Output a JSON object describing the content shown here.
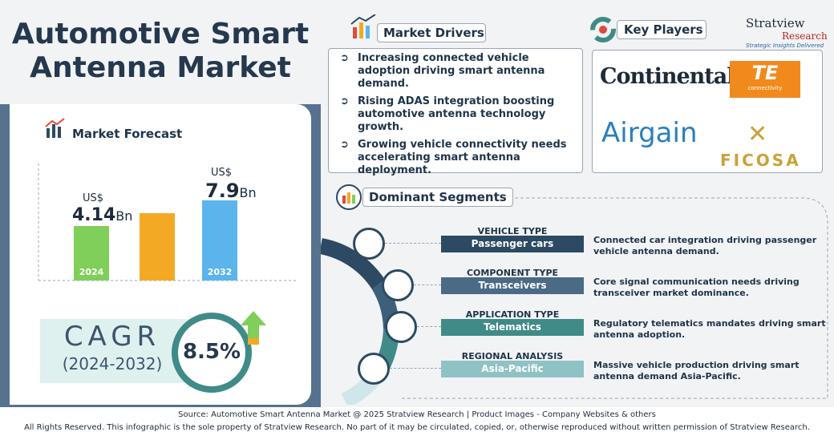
{
  "title": "Automotive Smart Antenna Market",
  "forecast": {
    "heading": "Market Forecast",
    "bars": [
      {
        "currency": "US$",
        "value": "4.14",
        "unit": "Bn",
        "year": "2024"
      },
      {
        "currency": "US$",
        "value": "7.9",
        "unit": "Bn",
        "year": "2032"
      }
    ]
  },
  "cagr": {
    "label": "CAGR",
    "period": "(2024-2032)",
    "value": "8.5%"
  },
  "drivers": {
    "heading": "Market Drivers",
    "items": [
      "Increasing connected vehicle adoption driving smart antenna demand.",
      "Rising ADAS integration boosting automotive antenna technology growth.",
      "Growing vehicle connectivity needs accelerating smart antenna deployment."
    ]
  },
  "key_players": {
    "heading": "Key Players",
    "logos": [
      "Continental",
      "TE",
      "connectivity",
      "Airgain",
      "FICOSA"
    ]
  },
  "brand": {
    "name": "Stratview",
    "sub": "Research",
    "tagline": "Strategic Insights Delivered"
  },
  "segments": {
    "heading": "Dominant Segments",
    "items": [
      {
        "type": "VEHICLE TYPE",
        "name": "Passenger cars",
        "desc": "Connected car integration driving passenger vehicle antenna demand."
      },
      {
        "type": "COMPONENT TYPE",
        "name": "Transceivers",
        "desc": "Core signal communication needs driving transceiver market dominance."
      },
      {
        "type": "APPLICATION TYPE",
        "name": "Telematics",
        "desc": "Regulatory telematics mandates driving smart antenna adoption."
      },
      {
        "type": "REGIONAL ANALYSIS",
        "name": "Asia-Pacific",
        "desc": "Massive vehicle production driving smart antenna demand Asia-Pacific."
      }
    ]
  },
  "footer": {
    "source": "Source:  Automotive Smart Antenna Market @ 2025 Stratview Research | Product Images  - Company Websites & others",
    "rights": "All Rights Reserved. This infographic is the sole property of Stratview Research. No part of it may be circulated, copied, or, otherwise reproduced without written permission of Stratview Research."
  }
}
